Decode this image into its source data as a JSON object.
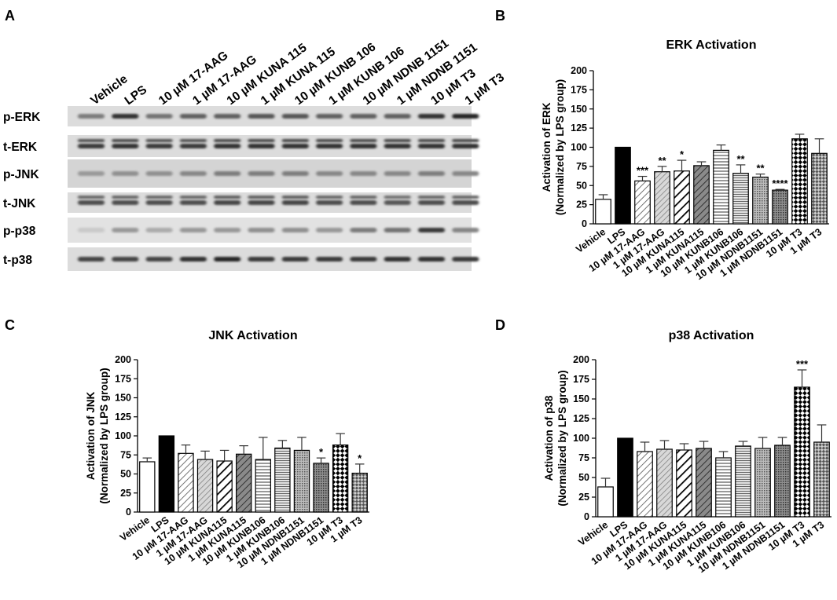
{
  "panels": {
    "A": {
      "letter": "A"
    },
    "B": {
      "letter": "B"
    },
    "C": {
      "letter": "C"
    },
    "D": {
      "letter": "D"
    }
  },
  "blot": {
    "lanes": [
      "Vehicle",
      "LPS",
      "10 µM 17-AAG",
      "1 µM 17-AAG",
      "10 µM KUNA 115",
      "1 µM KUNA 115",
      "10 µM KUNB 106",
      "1 µM KUNB 106",
      "10 µM NDNB 1151",
      "1 µM NDNB 1151",
      "10 µM T3",
      "1 µM T3"
    ],
    "rows": [
      {
        "label": "p-ERK",
        "intensity": [
          0.45,
          0.85,
          0.5,
          0.6,
          0.6,
          0.65,
          0.65,
          0.6,
          0.6,
          0.6,
          0.85,
          0.9
        ]
      },
      {
        "label": "t-ERK",
        "intensity": [
          0.8,
          0.85,
          0.8,
          0.8,
          0.85,
          0.85,
          0.85,
          0.85,
          0.85,
          0.85,
          0.85,
          0.85
        ]
      },
      {
        "label": "p-JNK",
        "intensity": [
          0.3,
          0.35,
          0.35,
          0.4,
          0.45,
          0.45,
          0.45,
          0.4,
          0.4,
          0.4,
          0.45,
          0.4
        ]
      },
      {
        "label": "t-JNK",
        "intensity": [
          0.7,
          0.7,
          0.7,
          0.7,
          0.75,
          0.75,
          0.75,
          0.7,
          0.7,
          0.65,
          0.7,
          0.7
        ]
      },
      {
        "label": "p-p38",
        "intensity": [
          0.05,
          0.3,
          0.2,
          0.3,
          0.3,
          0.35,
          0.35,
          0.3,
          0.45,
          0.5,
          0.8,
          0.4
        ]
      },
      {
        "label": "t-p38",
        "intensity": [
          0.75,
          0.75,
          0.75,
          0.85,
          0.9,
          0.8,
          0.8,
          0.8,
          0.8,
          0.85,
          0.85,
          0.8
        ]
      }
    ]
  },
  "chart_data": [
    {
      "panel": "B",
      "type": "bar",
      "title": "ERK Activation",
      "ylabel_line1": "Activation of ERK",
      "ylabel_line2": "(Normalized by LPS group)",
      "ylim": [
        0,
        200
      ],
      "yticks": [
        0,
        25,
        50,
        75,
        100,
        125,
        150,
        175,
        200
      ],
      "categories": [
        "Vehicle",
        "LPS",
        "10 µM 17-AAG",
        "1 µM 17-AAG",
        "10 µM KUNA115",
        "1 µM KUNA115",
        "10 µM KUNB106",
        "1 µM KUNB106",
        "10 µM NDNB1151",
        "1 µM NDNB1151",
        "10 µM T3",
        "1 µM T3"
      ],
      "values": [
        32,
        100,
        56,
        68,
        69,
        76,
        96,
        66,
        61,
        44,
        111,
        92
      ],
      "errors": [
        6,
        0,
        6,
        7,
        14,
        5,
        7,
        11,
        4,
        1,
        6,
        19
      ],
      "significance": [
        "",
        "",
        "***",
        "**",
        "*",
        "",
        "",
        "**",
        "**",
        "****",
        "",
        ""
      ],
      "patterns": [
        "white",
        "black",
        "diagR",
        "diagR-gray",
        "diagR-bold",
        "diagR-dark",
        "hlines",
        "hlines-fine",
        "dots",
        "dots-dark",
        "check",
        "check-fine"
      ]
    },
    {
      "panel": "C",
      "type": "bar",
      "title": "JNK Activation",
      "ylabel_line1": "Activation of JNK",
      "ylabel_line2": "(Normalized by LPS group)",
      "ylim": [
        0,
        200
      ],
      "yticks": [
        0,
        25,
        50,
        75,
        100,
        125,
        150,
        175,
        200
      ],
      "categories": [
        "Vehicle",
        "LPS",
        "10 µM 17-AAG",
        "1 µM 17-AAG",
        "10 µM KUNA115",
        "1 µM KUNA115",
        "10 µM KUNB106",
        "1 µM KUNB106",
        "10 µM NDNB1151",
        "1 µM NDNB1151",
        "10 µM T3",
        "1 µM T3"
      ],
      "values": [
        66,
        100,
        77,
        69,
        67,
        76,
        69,
        84,
        81,
        64,
        88,
        51
      ],
      "errors": [
        5,
        0,
        11,
        11,
        14,
        11,
        29,
        10,
        17,
        7,
        15,
        12
      ],
      "significance": [
        "",
        "",
        "",
        "",
        "",
        "",
        "",
        "",
        "",
        "*",
        "",
        "*"
      ],
      "patterns": [
        "white",
        "black",
        "diagR",
        "diagR-gray",
        "diagR-bold",
        "diagR-dark",
        "hlines",
        "hlines-fine",
        "dots",
        "dots-dark",
        "check",
        "check-fine"
      ]
    },
    {
      "panel": "D",
      "type": "bar",
      "title": "p38 Activation",
      "ylabel_line1": "Activation of p38",
      "ylabel_line2": "(Normalized by LPS group)",
      "ylim": [
        0,
        200
      ],
      "yticks": [
        0,
        25,
        50,
        75,
        100,
        125,
        150,
        175,
        200
      ],
      "categories": [
        "Vehicle",
        "LPS",
        "10 µM 17-AAG",
        "1 µM 17-AAG",
        "10 µM KUNA115",
        "1 µM KUNA115",
        "10 µM KUNB106",
        "1 µM KUNB106",
        "10 µM NDNB1151",
        "1 µM NDNB1151",
        "10 µM T3",
        "1 µM T3"
      ],
      "values": [
        38,
        100,
        83,
        86,
        85,
        87,
        75,
        90,
        87,
        91,
        165,
        95
      ],
      "errors": [
        11,
        0,
        12,
        11,
        8,
        9,
        8,
        6,
        14,
        10,
        22,
        22
      ],
      "significance": [
        "",
        "",
        "",
        "",
        "",
        "",
        "",
        "",
        "",
        "",
        "***",
        ""
      ],
      "patterns": [
        "white",
        "black",
        "diagR",
        "diagR-gray",
        "diagR-bold",
        "diagR-dark",
        "hlines",
        "hlines-fine",
        "dots",
        "dots-dark",
        "check",
        "check-fine"
      ]
    }
  ]
}
